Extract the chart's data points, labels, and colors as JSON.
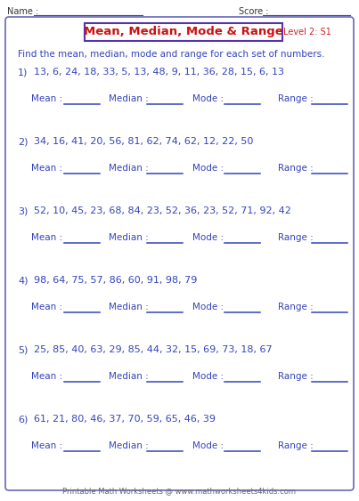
{
  "title": "Mean, Median, Mode & Range",
  "level": "Level 2: S1",
  "name_label": "Name :",
  "score_label": "Score :",
  "instruction": "Find the mean, median, mode and range for each set of numbers.",
  "problems": [
    {
      "num": "1)",
      "numbers": "13, 6, 24, 18, 33, 5, 13, 48, 9, 11, 36, 28, 15, 6, 13"
    },
    {
      "num": "2)",
      "numbers": "34, 16, 41, 20, 56, 81, 62, 74, 62, 12, 22, 50"
    },
    {
      "num": "3)",
      "numbers": "52, 10, 45, 23, 68, 84, 23, 52, 36, 23, 52, 71, 92, 42"
    },
    {
      "num": "4)",
      "numbers": "98, 64, 75, 57, 86, 60, 91, 98, 79"
    },
    {
      "num": "5)",
      "numbers": "25, 85, 40, 63, 29, 85, 44, 32, 15, 69, 73, 18, 67"
    },
    {
      "num": "6)",
      "numbers": "61, 21, 80, 46, 37, 70, 59, 65, 46, 39"
    }
  ],
  "footer": "Printable Math Worksheets @ www.mathworksheets4kids.com",
  "bg_color": "#ffffff",
  "outer_border_color": "#6666bb",
  "title_box_border": "#5533aa",
  "title_color": "#cc1111",
  "title_bg": "#ffffff",
  "level_color": "#cc2222",
  "text_color": "#3344bb",
  "label_color": "#3344bb",
  "underline_color": "#3344bb",
  "name_line_color": "#3344bb",
  "footer_color": "#666666",
  "name_text_color": "#333333",
  "problem_num_color": "#3344bb",
  "numbers_color": "#3344bb"
}
